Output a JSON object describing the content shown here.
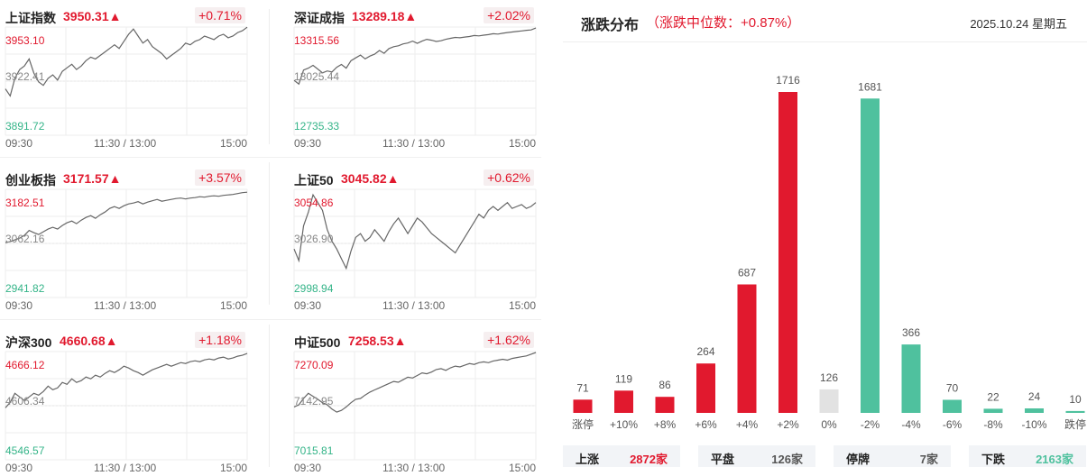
{
  "indices": [
    {
      "name": "上证指数",
      "value": "3950.31▲",
      "change": "+0.71%",
      "top": "3953.10",
      "mid": "3922.41",
      "bottom": "3891.72",
      "times": [
        "09:30",
        "11:30 / 13:00",
        "15:00"
      ],
      "series": [
        3918,
        3914,
        3924,
        3929,
        3931,
        3935,
        3927,
        3922,
        3920,
        3924,
        3926,
        3923,
        3928,
        3930,
        3932,
        3929,
        3931,
        3934,
        3936,
        3935,
        3937,
        3939,
        3941,
        3943,
        3941,
        3945,
        3949,
        3952,
        3948,
        3944,
        3946,
        3942,
        3940,
        3938,
        3935,
        3937,
        3939,
        3941,
        3944,
        3943,
        3945,
        3946,
        3948,
        3947,
        3946,
        3948,
        3949,
        3947,
        3948,
        3950,
        3951,
        3953
      ]
    },
    {
      "name": "深证成指",
      "value": "13289.18▲",
      "change": "+2.02%",
      "top": "13315.56",
      "mid": "13025.44",
      "bottom": "12735.33",
      "times": [
        "09:30",
        "11:30 / 13:00",
        "15:00"
      ],
      "series": [
        13030,
        13010,
        13085,
        13095,
        13110,
        13090,
        13070,
        13080,
        13075,
        13100,
        13115,
        13095,
        13135,
        13150,
        13165,
        13145,
        13160,
        13170,
        13190,
        13175,
        13200,
        13210,
        13215,
        13225,
        13230,
        13240,
        13228,
        13240,
        13250,
        13245,
        13238,
        13242,
        13250,
        13255,
        13260,
        13258,
        13262,
        13265,
        13270,
        13268,
        13272,
        13275,
        13280,
        13278,
        13282,
        13286,
        13289,
        13292,
        13295,
        13298,
        13300,
        13310
      ]
    },
    {
      "name": "创业板指",
      "value": "3171.57▲",
      "change": "+3.57%",
      "top": "3182.51",
      "mid": "3062.16",
      "bottom": "2941.82",
      "times": [
        "09:30",
        "11:30 / 13:00",
        "15:00"
      ],
      "series": [
        3064,
        3066,
        3070,
        3074,
        3080,
        3091,
        3086,
        3082,
        3088,
        3094,
        3098,
        3094,
        3102,
        3108,
        3112,
        3106,
        3114,
        3120,
        3124,
        3118,
        3126,
        3132,
        3140,
        3144,
        3140,
        3146,
        3150,
        3152,
        3155,
        3150,
        3154,
        3157,
        3160,
        3156,
        3158,
        3160,
        3162,
        3163,
        3161,
        3163,
        3164,
        3166,
        3165,
        3167,
        3168,
        3167,
        3169,
        3170,
        3171,
        3173,
        3175,
        3176
      ]
    },
    {
      "name": "上证50",
      "value": "3045.82▲",
      "change": "+0.62%",
      "top": "3054.86",
      "mid": "3026.90",
      "bottom": "2998.94",
      "times": [
        "09:30",
        "11:30 / 13:00",
        "15:00"
      ],
      "series": [
        3024,
        3018,
        3036,
        3043,
        3052,
        3048,
        3044,
        3034,
        3028,
        3024,
        3019,
        3014,
        3023,
        3030,
        3032,
        3028,
        3030,
        3034,
        3031,
        3028,
        3033,
        3037,
        3040,
        3036,
        3032,
        3036,
        3040,
        3038,
        3035,
        3032,
        3030,
        3028,
        3026,
        3024,
        3022,
        3026,
        3030,
        3034,
        3038,
        3042,
        3040,
        3044,
        3046,
        3044,
        3046,
        3048,
        3045,
        3046,
        3047,
        3045,
        3046,
        3048
      ]
    },
    {
      "name": "沪深300",
      "value": "4660.68▲",
      "change": "+1.18%",
      "top": "4666.12",
      "mid": "4606.34",
      "bottom": "4546.57",
      "times": [
        "09:30",
        "11:30 / 13:00",
        "15:00"
      ],
      "series": [
        4604,
        4610,
        4620,
        4616,
        4612,
        4616,
        4620,
        4618,
        4622,
        4628,
        4624,
        4626,
        4632,
        4630,
        4636,
        4632,
        4634,
        4638,
        4636,
        4640,
        4638,
        4642,
        4645,
        4643,
        4646,
        4650,
        4648,
        4645,
        4643,
        4640,
        4643,
        4646,
        4648,
        4650,
        4652,
        4650,
        4652,
        4654,
        4653,
        4655,
        4656,
        4655,
        4657,
        4658,
        4657,
        4659,
        4660,
        4658,
        4659,
        4661,
        4662,
        4664
      ]
    },
    {
      "name": "中证500",
      "value": "7258.53▲",
      "change": "+1.62%",
      "top": "7270.09",
      "mid": "7142.95",
      "bottom": "7015.81",
      "times": [
        "09:30",
        "11:30 / 13:00",
        "15:00"
      ],
      "series": [
        7140,
        7145,
        7160,
        7172,
        7165,
        7158,
        7150,
        7145,
        7135,
        7128,
        7132,
        7140,
        7150,
        7158,
        7160,
        7168,
        7175,
        7180,
        7185,
        7190,
        7195,
        7200,
        7198,
        7204,
        7210,
        7208,
        7214,
        7220,
        7218,
        7222,
        7228,
        7230,
        7226,
        7232,
        7236,
        7234,
        7238,
        7242,
        7240,
        7244,
        7246,
        7244,
        7248,
        7250,
        7252,
        7250,
        7254,
        7256,
        7258,
        7260,
        7264,
        7268
      ]
    }
  ],
  "distribution": {
    "title": "涨跌分布",
    "subtitle": "（涨跌中位数：+0.87%）",
    "date": "2025.10.24 星期五",
    "colors": {
      "up": "#e1192e",
      "flat": "#e2e2e2",
      "down": "#4fc19e"
    },
    "chart_data": {
      "type": "bar",
      "categories": [
        "涨停",
        "+10%",
        "+8%",
        "+6%",
        "+4%",
        "+2%",
        "0%",
        "-2%",
        "-4%",
        "-6%",
        "-8%",
        "-10%",
        "跌停"
      ],
      "values": [
        71,
        119,
        86,
        264,
        687,
        1716,
        126,
        1681,
        366,
        70,
        22,
        24,
        10
      ],
      "kinds": [
        "up",
        "up",
        "up",
        "up",
        "up",
        "up",
        "flat",
        "down",
        "down",
        "down",
        "down",
        "down",
        "down"
      ]
    },
    "summary": [
      {
        "label": "上涨",
        "value": "2872家",
        "color": "#e1192e"
      },
      {
        "label": "平盘",
        "value": "126家",
        "color": "#555555"
      },
      {
        "label": "停牌",
        "value": "7家",
        "color": "#555555"
      },
      {
        "label": "下跌",
        "value": "2163家",
        "color": "#4fc19e"
      }
    ]
  }
}
